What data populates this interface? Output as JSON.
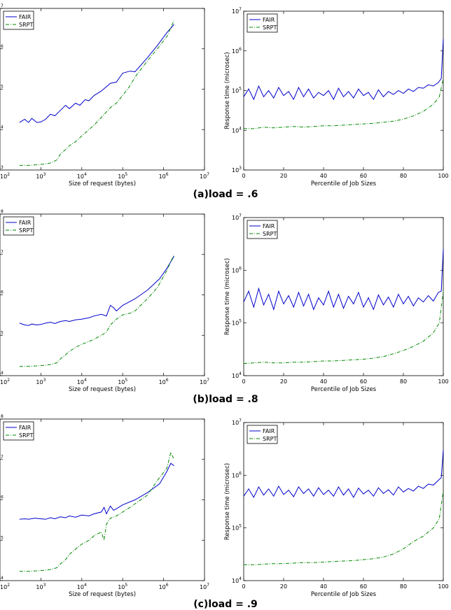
{
  "chart_data": [
    {
      "type": "line",
      "panel": "a-left",
      "xlabel": "Size of request (bytes)",
      "ylabel": "",
      "xscale": "log",
      "yscale": "log",
      "xlim": [
        100,
        10000000
      ],
      "ylim": [
        1000,
        10000000
      ],
      "xtick_exponents": [
        2,
        3,
        4,
        5,
        6,
        7
      ],
      "ytick_exponents": [
        3,
        4,
        5,
        6,
        7
      ],
      "legend": "top-left",
      "series": [
        {
          "name": "FAIR",
          "color": "#0000cc",
          "style": "solid",
          "x": [
            300,
            400,
            500,
            600,
            800,
            1000,
            1300,
            1700,
            2200,
            3000,
            4000,
            5000,
            7000,
            9000,
            12000,
            15000,
            20000,
            30000,
            50000,
            70000,
            100000,
            150000,
            200000,
            400000,
            700000,
            1200000,
            1800000
          ],
          "y": [
            15000,
            18000,
            15000,
            19000,
            15000,
            15500,
            18000,
            24000,
            22000,
            30000,
            40000,
            33000,
            45000,
            40000,
            55000,
            52000,
            70000,
            90000,
            140000,
            150000,
            250000,
            280000,
            270000,
            600000,
            1200000,
            2500000,
            4000000
          ]
        },
        {
          "name": "SRPT",
          "color": "#008800",
          "style": "dashdot",
          "x": [
            300,
            500,
            800,
            1200,
            1800,
            2500,
            3000,
            4000,
            5000,
            7000,
            10000,
            15000,
            20000,
            30000,
            50000,
            70000,
            100000,
            150000,
            200000,
            400000,
            700000,
            1200000,
            1800000
          ],
          "y": [
            1300,
            1300,
            1350,
            1400,
            1500,
            1800,
            2500,
            3200,
            4000,
            5000,
            7000,
            10000,
            13000,
            20000,
            35000,
            45000,
            70000,
            120000,
            200000,
            500000,
            1000000,
            2000000,
            5000000
          ]
        }
      ]
    },
    {
      "type": "line",
      "panel": "a-right",
      "xlabel": "Percentile of Job Sizes",
      "ylabel": "Response time (microsec)",
      "yscale": "log",
      "xlim": [
        0,
        100
      ],
      "ylim": [
        1000,
        10000000
      ],
      "xticks": [
        0,
        20,
        40,
        60,
        80,
        100
      ],
      "ytick_exponents": [
        3,
        4,
        5,
        6,
        7
      ],
      "legend": "top-left",
      "series": [
        {
          "name": "FAIR",
          "color": "#0000cc",
          "style": "solid",
          "x": [
            0,
            2.5,
            5,
            7.5,
            10,
            12.5,
            15,
            17.5,
            20,
            22.5,
            25,
            27.5,
            30,
            32.5,
            35,
            37.5,
            40,
            42.5,
            45,
            47.5,
            50,
            52.5,
            55,
            57.5,
            60,
            62.5,
            65,
            67.5,
            70,
            72.5,
            75,
            77.5,
            80,
            82.5,
            85,
            87.5,
            90,
            92.5,
            95,
            97.5,
            99,
            100
          ],
          "y": [
            70000,
            110000,
            60000,
            130000,
            70000,
            100000,
            65000,
            120000,
            75000,
            95000,
            60000,
            120000,
            70000,
            110000,
            65000,
            90000,
            75000,
            100000,
            60000,
            115000,
            70000,
            95000,
            65000,
            110000,
            75000,
            90000,
            60000,
            105000,
            70000,
            95000,
            80000,
            100000,
            85000,
            110000,
            95000,
            120000,
            115000,
            140000,
            130000,
            160000,
            200000,
            2000000
          ]
        },
        {
          "name": "SRPT",
          "color": "#008800",
          "style": "dashdot",
          "x": [
            0,
            5,
            10,
            15,
            20,
            25,
            30,
            35,
            40,
            45,
            50,
            55,
            60,
            65,
            70,
            75,
            80,
            85,
            90,
            95,
            98,
            100
          ],
          "y": [
            11000,
            11000,
            12000,
            11500,
            12000,
            12500,
            12000,
            12500,
            13000,
            13000,
            13500,
            14000,
            14500,
            15000,
            16000,
            17000,
            19000,
            23000,
            30000,
            45000,
            70000,
            200000
          ]
        }
      ]
    },
    {
      "type": "line",
      "panel": "b-left",
      "xlabel": "Size of request (bytes)",
      "ylabel": "",
      "xscale": "log",
      "yscale": "log",
      "xlim": [
        100,
        10000000
      ],
      "ylim": [
        10000,
        100000000
      ],
      "xtick_exponents": [
        2,
        3,
        4,
        5,
        6,
        7
      ],
      "ytick_exponents": [
        4,
        5,
        6,
        7,
        8
      ],
      "legend": "top-left",
      "series": [
        {
          "name": "FAIR",
          "color": "#0000cc",
          "style": "solid",
          "x": [
            300,
            400,
            500,
            600,
            800,
            1000,
            1300,
            1700,
            2200,
            3000,
            4000,
            5000,
            7000,
            10000,
            15000,
            20000,
            30000,
            40000,
            50000,
            60000,
            70000,
            100000,
            200000,
            400000,
            800000,
            1200000,
            1800000
          ],
          "y": [
            200000,
            180000,
            175000,
            190000,
            180000,
            185000,
            200000,
            210000,
            195000,
            220000,
            230000,
            220000,
            240000,
            250000,
            270000,
            300000,
            330000,
            300000,
            550000,
            480000,
            400000,
            550000,
            800000,
            1300000,
            2500000,
            4500000,
            9000000
          ]
        },
        {
          "name": "SRPT",
          "color": "#008800",
          "style": "dashdot",
          "x": [
            300,
            500,
            800,
            1200,
            1800,
            2500,
            3000,
            4000,
            5000,
            7000,
            10000,
            15000,
            20000,
            30000,
            40000,
            50000,
            70000,
            100000,
            150000,
            200000,
            400000,
            700000,
            1200000,
            1800000
          ],
          "y": [
            17000,
            17000,
            17500,
            18000,
            19000,
            21000,
            26000,
            33000,
            40000,
            50000,
            60000,
            70000,
            80000,
            100000,
            120000,
            180000,
            250000,
            320000,
            350000,
            400000,
            800000,
            1500000,
            4000000,
            10000000
          ]
        }
      ]
    },
    {
      "type": "line",
      "panel": "b-right",
      "xlabel": "Percentile of Job Sizes",
      "ylabel": "Response time (microsec)",
      "yscale": "log",
      "xlim": [
        0,
        100
      ],
      "ylim": [
        10000,
        10000000
      ],
      "xticks": [
        0,
        20,
        40,
        60,
        80,
        100
      ],
      "ytick_exponents": [
        4,
        5,
        6,
        7
      ],
      "legend": "top-left",
      "series": [
        {
          "name": "FAIR",
          "color": "#0000cc",
          "style": "solid",
          "x": [
            0,
            2.5,
            5,
            7.5,
            10,
            12.5,
            15,
            17.5,
            20,
            22.5,
            25,
            27.5,
            30,
            32.5,
            35,
            37.5,
            40,
            42.5,
            45,
            47.5,
            50,
            52.5,
            55,
            57.5,
            60,
            62.5,
            65,
            67.5,
            70,
            72.5,
            75,
            77.5,
            80,
            82.5,
            85,
            87.5,
            90,
            92.5,
            95,
            97.5,
            99,
            100
          ],
          "y": [
            250000,
            400000,
            200000,
            450000,
            220000,
            350000,
            180000,
            400000,
            230000,
            330000,
            200000,
            380000,
            210000,
            350000,
            180000,
            300000,
            220000,
            400000,
            200000,
            350000,
            190000,
            320000,
            230000,
            380000,
            200000,
            300000,
            180000,
            340000,
            220000,
            310000,
            200000,
            350000,
            230000,
            320000,
            210000,
            300000,
            250000,
            330000,
            260000,
            380000,
            400000,
            2500000
          ]
        },
        {
          "name": "SRPT",
          "color": "#008800",
          "style": "dashdot",
          "x": [
            0,
            5,
            10,
            15,
            20,
            25,
            30,
            35,
            40,
            45,
            50,
            55,
            60,
            65,
            70,
            75,
            80,
            85,
            90,
            95,
            98,
            100
          ],
          "y": [
            17000,
            17500,
            18000,
            17500,
            17500,
            18000,
            18000,
            18500,
            19000,
            19000,
            19500,
            20000,
            20500,
            21500,
            23000,
            26000,
            30000,
            36000,
            45000,
            65000,
            100000,
            400000
          ]
        }
      ]
    },
    {
      "type": "line",
      "panel": "c-left",
      "xlabel": "Size of request (bytes)",
      "ylabel": "",
      "xscale": "log",
      "yscale": "log",
      "xlim": [
        100,
        10000000
      ],
      "ylim": [
        10000,
        100000000
      ],
      "xtick_exponents": [
        2,
        3,
        4,
        5,
        6,
        7
      ],
      "ytick_exponents": [
        4,
        5,
        6,
        7,
        8
      ],
      "legend": "top-left",
      "series": [
        {
          "name": "FAIR",
          "color": "#0000cc",
          "style": "solid",
          "x": [
            300,
            400,
            500,
            700,
            1000,
            1300,
            1700,
            2200,
            3000,
            4000,
            5000,
            7000,
            10000,
            15000,
            20000,
            30000,
            35000,
            40000,
            50000,
            60000,
            70000,
            100000,
            200000,
            400000,
            800000,
            1200000,
            1500000,
            1800000
          ],
          "y": [
            330000,
            340000,
            330000,
            350000,
            340000,
            330000,
            360000,
            340000,
            380000,
            360000,
            400000,
            370000,
            420000,
            400000,
            450000,
            500000,
            650000,
            450000,
            700000,
            550000,
            600000,
            750000,
            1000000,
            1500000,
            2500000,
            5000000,
            8000000,
            7000000
          ]
        },
        {
          "name": "SRPT",
          "color": "#008800",
          "style": "dashdot",
          "x": [
            300,
            500,
            800,
            1200,
            1800,
            2500,
            3000,
            4000,
            5000,
            7000,
            10000,
            15000,
            20000,
            30000,
            35000,
            40000,
            50000,
            70000,
            100000,
            150000,
            200000,
            400000,
            700000,
            1200000,
            1500000,
            1800000
          ],
          "y": [
            17000,
            17000,
            17500,
            18000,
            19000,
            21000,
            26000,
            33000,
            45000,
            60000,
            80000,
            100000,
            130000,
            160000,
            100000,
            250000,
            350000,
            400000,
            500000,
            650000,
            800000,
            1300000,
            3000000,
            6000000,
            15000000,
            10000000
          ]
        }
      ]
    },
    {
      "type": "line",
      "panel": "c-right",
      "xlabel": "Percentile of Job Sizes",
      "ylabel": "Response time (microsec)",
      "yscale": "log",
      "xlim": [
        0,
        100
      ],
      "ylim": [
        10000,
        10000000
      ],
      "xticks": [
        0,
        20,
        40,
        60,
        80,
        100
      ],
      "ytick_exponents": [
        4,
        5,
        6,
        7
      ],
      "legend": "top-left",
      "series": [
        {
          "name": "FAIR",
          "color": "#0000cc",
          "style": "solid",
          "x": [
            0,
            2.5,
            5,
            7.5,
            10,
            12.5,
            15,
            17.5,
            20,
            22.5,
            25,
            27.5,
            30,
            32.5,
            35,
            37.5,
            40,
            42.5,
            45,
            47.5,
            50,
            52.5,
            55,
            57.5,
            60,
            62.5,
            65,
            67.5,
            70,
            72.5,
            75,
            77.5,
            80,
            82.5,
            85,
            87.5,
            90,
            92.5,
            95,
            97.5,
            99,
            100
          ],
          "y": [
            400000,
            550000,
            380000,
            600000,
            420000,
            550000,
            400000,
            620000,
            430000,
            520000,
            390000,
            600000,
            450000,
            550000,
            400000,
            580000,
            430000,
            520000,
            400000,
            600000,
            420000,
            550000,
            380000,
            570000,
            440000,
            520000,
            400000,
            580000,
            450000,
            530000,
            420000,
            600000,
            480000,
            560000,
            500000,
            620000,
            560000,
            680000,
            650000,
            800000,
            900000,
            3000000
          ]
        },
        {
          "name": "SRPT",
          "color": "#008800",
          "style": "dashdot",
          "x": [
            0,
            5,
            10,
            15,
            20,
            25,
            30,
            35,
            40,
            45,
            50,
            55,
            60,
            65,
            70,
            75,
            80,
            85,
            90,
            95,
            98,
            100
          ],
          "y": [
            20000,
            20000,
            20500,
            21000,
            21000,
            21500,
            22000,
            22000,
            22500,
            23000,
            23500,
            24000,
            25000,
            26000,
            28000,
            32000,
            40000,
            55000,
            70000,
            100000,
            150000,
            500000
          ]
        }
      ]
    }
  ],
  "captions": [
    {
      "label": "(a)",
      "text": "load = .6"
    },
    {
      "label": "(b)",
      "text": "load = .8"
    },
    {
      "label": "(c)",
      "text": "load = .9"
    }
  ]
}
